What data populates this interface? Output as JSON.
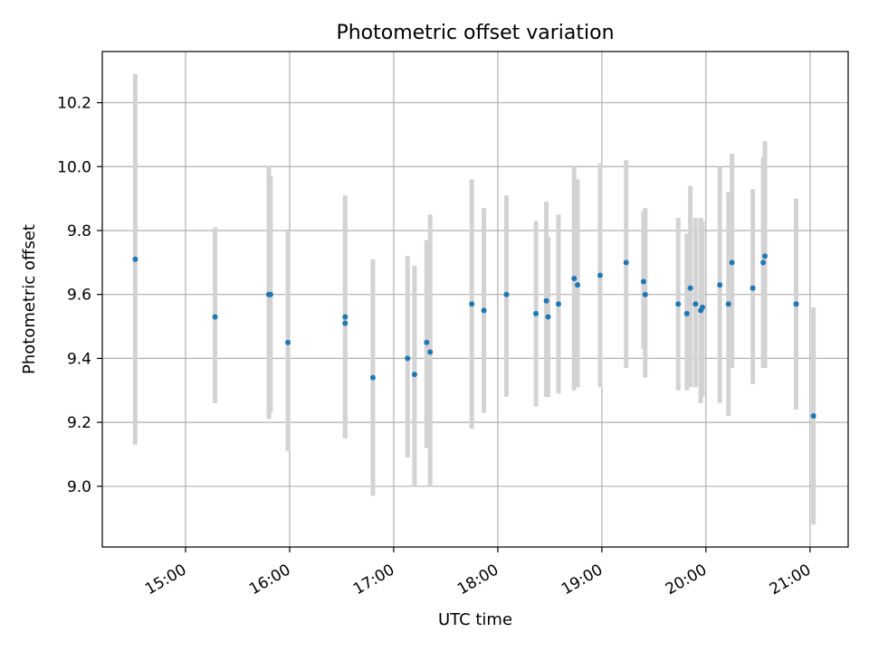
{
  "chart_data": {
    "type": "scatter",
    "title": "Photometric offset variation",
    "xlabel": "UTC time",
    "ylabel": "Photometric offset",
    "xlim": [
      "14:12",
      "21:22"
    ],
    "ylim": [
      8.81,
      10.36
    ],
    "grid": true,
    "x_tick_labels": [
      "15:00",
      "16:00",
      "17:00",
      "18:00",
      "19:00",
      "20:00",
      "21:00"
    ],
    "y_tick_labels": [
      "9.0",
      "9.2",
      "9.4",
      "9.6",
      "9.8",
      "10.0",
      "10.2"
    ],
    "series": [
      {
        "name": "offset",
        "marker_color": "#1f77b4",
        "error_color": "#d3d3d3",
        "points": [
          {
            "time": "14:31",
            "y": 9.71,
            "err_low": 9.13,
            "err_high": 10.29
          },
          {
            "time": "15:17",
            "y": 9.53,
            "err_low": 9.26,
            "err_high": 9.81
          },
          {
            "time": "15:48",
            "y": 9.6,
            "err_low": 9.21,
            "err_high": 10.0
          },
          {
            "time": "15:49",
            "y": 9.6,
            "err_low": 9.23,
            "err_high": 9.97
          },
          {
            "time": "15:59",
            "y": 9.45,
            "err_low": 9.11,
            "err_high": 9.8
          },
          {
            "time": "16:32",
            "y": 9.53,
            "err_low": 9.15,
            "err_high": 9.91
          },
          {
            "time": "16:32",
            "y": 9.51,
            "err_low": 9.15,
            "err_high": 9.87
          },
          {
            "time": "16:48",
            "y": 9.34,
            "err_low": 8.97,
            "err_high": 9.71
          },
          {
            "time": "17:08",
            "y": 9.4,
            "err_low": 9.09,
            "err_high": 9.72
          },
          {
            "time": "17:12",
            "y": 9.35,
            "err_low": 9.0,
            "err_high": 9.69
          },
          {
            "time": "17:19",
            "y": 9.45,
            "err_low": 9.12,
            "err_high": 9.77
          },
          {
            "time": "17:21",
            "y": 9.42,
            "err_low": 9.0,
            "err_high": 9.85
          },
          {
            "time": "17:45",
            "y": 9.57,
            "err_low": 9.18,
            "err_high": 9.96
          },
          {
            "time": "17:52",
            "y": 9.55,
            "err_low": 9.23,
            "err_high": 9.87
          },
          {
            "time": "18:05",
            "y": 9.6,
            "err_low": 9.28,
            "err_high": 9.91
          },
          {
            "time": "18:22",
            "y": 9.54,
            "err_low": 9.25,
            "err_high": 9.83
          },
          {
            "time": "18:28",
            "y": 9.58,
            "err_low": 9.28,
            "err_high": 9.89
          },
          {
            "time": "18:29",
            "y": 9.53,
            "err_low": 9.28,
            "err_high": 9.78
          },
          {
            "time": "18:35",
            "y": 9.57,
            "err_low": 9.29,
            "err_high": 9.85
          },
          {
            "time": "18:44",
            "y": 9.65,
            "err_low": 9.3,
            "err_high": 10.0
          },
          {
            "time": "18:46",
            "y": 9.63,
            "err_low": 9.31,
            "err_high": 9.96
          },
          {
            "time": "18:59",
            "y": 9.66,
            "err_low": 9.31,
            "err_high": 10.01
          },
          {
            "time": "19:14",
            "y": 9.7,
            "err_low": 9.37,
            "err_high": 10.02
          },
          {
            "time": "19:24",
            "y": 9.64,
            "err_low": 9.43,
            "err_high": 9.86
          },
          {
            "time": "19:25",
            "y": 9.6,
            "err_low": 9.34,
            "err_high": 9.87
          },
          {
            "time": "19:44",
            "y": 9.57,
            "err_low": 9.3,
            "err_high": 9.84
          },
          {
            "time": "19:49",
            "y": 9.54,
            "err_low": 9.3,
            "err_high": 9.79
          },
          {
            "time": "19:51",
            "y": 9.62,
            "err_low": 9.31,
            "err_high": 9.94
          },
          {
            "time": "19:54",
            "y": 9.57,
            "err_low": 9.31,
            "err_high": 9.84
          },
          {
            "time": "19:57",
            "y": 9.55,
            "err_low": 9.26,
            "err_high": 9.84
          },
          {
            "time": "19:58",
            "y": 9.56,
            "err_low": 9.28,
            "err_high": 9.83
          },
          {
            "time": "20:08",
            "y": 9.63,
            "err_low": 9.26,
            "err_high": 10.0
          },
          {
            "time": "20:13",
            "y": 9.57,
            "err_low": 9.22,
            "err_high": 9.92
          },
          {
            "time": "20:15",
            "y": 9.7,
            "err_low": 9.37,
            "err_high": 10.04
          },
          {
            "time": "20:27",
            "y": 9.62,
            "err_low": 9.32,
            "err_high": 9.93
          },
          {
            "time": "20:33",
            "y": 9.7,
            "err_low": 9.37,
            "err_high": 10.03
          },
          {
            "time": "20:34",
            "y": 9.72,
            "err_low": 9.37,
            "err_high": 10.08
          },
          {
            "time": "20:52",
            "y": 9.57,
            "err_low": 9.24,
            "err_high": 9.9
          },
          {
            "time": "21:02",
            "y": 9.22,
            "err_low": 8.88,
            "err_high": 9.56
          }
        ]
      }
    ]
  }
}
